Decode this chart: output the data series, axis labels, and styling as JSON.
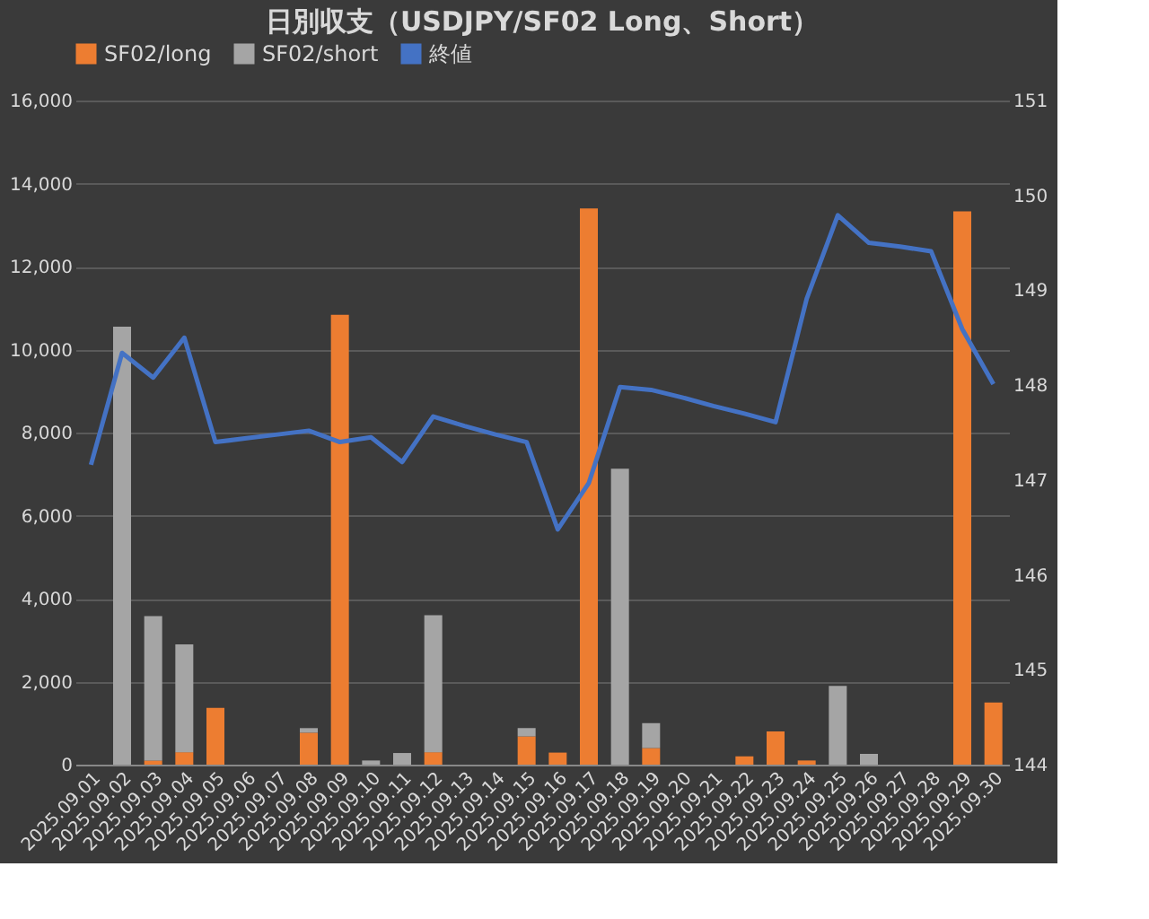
{
  "chart_data": {
    "type": "bar",
    "title": "日別収支（USDJPY/SF02 Long、Short）",
    "categories": [
      "2025.09.01",
      "2025.09.02",
      "2025.09.03",
      "2025.09.04",
      "2025.09.05",
      "2025.09.06",
      "2025.09.07",
      "2025.09.08",
      "2025.09.09",
      "2025.09.10",
      "2025.09.11",
      "2025.09.12",
      "2025.09.13",
      "2025.09.14",
      "2025.09.15",
      "2025.09.16",
      "2025.09.17",
      "2025.09.18",
      "2025.09.19",
      "2025.09.20",
      "2025.09.21",
      "2025.09.22",
      "2025.09.23",
      "2025.09.24",
      "2025.09.25",
      "2025.09.26",
      "2025.09.27",
      "2025.09.28",
      "2025.09.29",
      "2025.09.30"
    ],
    "stacked": true,
    "series": [
      {
        "name": "SF02/long",
        "color": "#ed7d31",
        "values": [
          0,
          0,
          100,
          300,
          1370,
          0,
          0,
          770,
          10840,
          0,
          0,
          300,
          0,
          0,
          680,
          290,
          13400,
          0,
          400,
          0,
          0,
          200,
          800,
          100,
          0,
          0,
          0,
          0,
          13330,
          1500
        ]
      },
      {
        "name": "SF02/short",
        "color": "#a5a5a5",
        "values": [
          0,
          10550,
          3480,
          2600,
          0,
          0,
          0,
          110,
          0,
          100,
          280,
          3300,
          0,
          0,
          200,
          0,
          0,
          7130,
          600,
          0,
          0,
          0,
          0,
          0,
          1900,
          260,
          0,
          0,
          0,
          0
        ]
      },
      {
        "name": "終値",
        "type": "line",
        "axis": "y2",
        "color": "#4472c4",
        "values": [
          147.16,
          148.34,
          148.08,
          148.5,
          147.4,
          147.44,
          147.48,
          147.52,
          147.4,
          147.45,
          147.19,
          147.67,
          147.57,
          147.48,
          147.4,
          146.48,
          146.97,
          147.98,
          147.95,
          147.87,
          147.78,
          147.7,
          147.61,
          148.91,
          149.79,
          149.5,
          149.46,
          149.41,
          148.59,
          148.01
        ]
      }
    ],
    "ylim": [
      0,
      16000
    ],
    "yticks": [
      0,
      {
        "value": 2000,
        "label": "2,000"
      },
      {
        "value": 4000,
        "label": "4,000"
      },
      {
        "value": 6000,
        "label": "6,000"
      },
      {
        "value": 8000,
        "label": "8,000"
      },
      {
        "value": 10000,
        "label": "10,000"
      },
      {
        "value": 12000,
        "label": "12,000"
      },
      {
        "value": 14000,
        "label": "14,000"
      },
      {
        "value": 16000,
        "label": "16,000"
      }
    ],
    "y2lim": [
      144,
      151
    ],
    "y2ticks": [
      144,
      145,
      146,
      147,
      148,
      149,
      150,
      151
    ],
    "grid": "y",
    "legend": "top",
    "marker": "none",
    "line_style": "solid"
  }
}
